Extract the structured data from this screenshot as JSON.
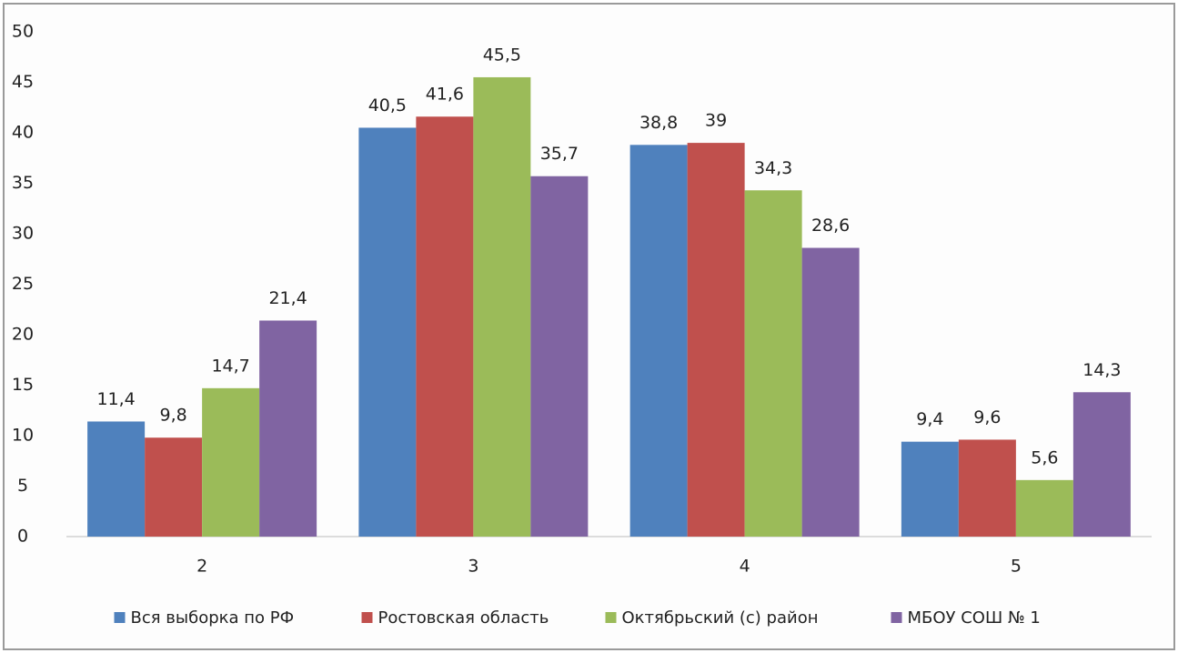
{
  "chart_data": {
    "type": "bar",
    "categories": [
      "2",
      "3",
      "4",
      "5"
    ],
    "series": [
      {
        "name": "Вся выборка по РФ",
        "color": "#4f81bd",
        "values": [
          11.4,
          40.5,
          38.8,
          9.4
        ],
        "value_labels": [
          "11,4",
          "40,5",
          "38,8",
          "9,4"
        ]
      },
      {
        "name": "Ростовская область",
        "color": "#c0504d",
        "values": [
          9.8,
          41.6,
          39,
          9.6
        ],
        "value_labels": [
          "9,8",
          "41,6",
          "39",
          "9,6"
        ]
      },
      {
        "name": "Октябрьский (с) район",
        "color": "#9bbb59",
        "values": [
          14.7,
          45.5,
          34.3,
          5.6
        ],
        "value_labels": [
          "14,7",
          "45,5",
          "34,3",
          "5,6"
        ]
      },
      {
        "name": "МБОУ СОШ № 1",
        "color": "#8064a2",
        "values": [
          21.4,
          35.7,
          28.6,
          14.3
        ],
        "value_labels": [
          "21,4",
          "35,7",
          "28,6",
          "14,3"
        ]
      }
    ],
    "ylim": [
      0,
      50
    ],
    "yticks": [
      0,
      5,
      10,
      15,
      20,
      25,
      30,
      35,
      40,
      45,
      50
    ],
    "grid": false,
    "legend": "bottom"
  }
}
